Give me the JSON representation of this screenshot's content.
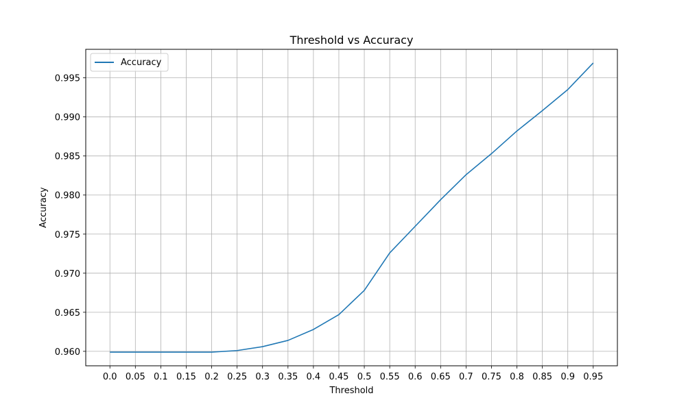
{
  "chart_data": {
    "type": "line",
    "title": "Threshold vs Accuracy",
    "xlabel": "Threshold",
    "ylabel": "Accuracy",
    "x": [
      0.0,
      0.05,
      0.1,
      0.15,
      0.2,
      0.25,
      0.3,
      0.35,
      0.4,
      0.45,
      0.5,
      0.55,
      0.6,
      0.65,
      0.7,
      0.75,
      0.8,
      0.85,
      0.9,
      0.95
    ],
    "x_tick_labels": [
      "0.0",
      "0.05",
      "0.1",
      "0.15",
      "0.2",
      "0.25",
      "0.3",
      "0.35",
      "0.4",
      "0.45",
      "0.5",
      "0.55",
      "0.6",
      "0.65",
      "0.7",
      "0.75",
      "0.8",
      "0.85",
      "0.9",
      "0.95"
    ],
    "y_ticks": [
      0.96,
      0.965,
      0.97,
      0.975,
      0.98,
      0.985,
      0.99,
      0.995
    ],
    "y_tick_labels": [
      "0.960",
      "0.965",
      "0.970",
      "0.975",
      "0.980",
      "0.985",
      "0.990",
      "0.995"
    ],
    "xlim": [
      -0.0475,
      0.9975
    ],
    "ylim": [
      0.95815,
      0.99865
    ],
    "grid": true,
    "legend_position": "upper left",
    "series": [
      {
        "name": "Accuracy",
        "color": "#1f77b4",
        "values": [
          0.9599,
          0.9599,
          0.9599,
          0.9599,
          0.9599,
          0.9601,
          0.9606,
          0.9614,
          0.9628,
          0.9647,
          0.9678,
          0.9726,
          0.976,
          0.9794,
          0.9826,
          0.9853,
          0.9882,
          0.9908,
          0.9935,
          0.9969
        ]
      }
    ]
  }
}
